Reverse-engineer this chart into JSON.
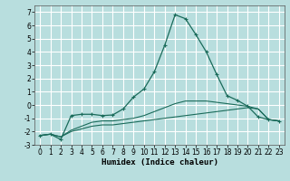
{
  "x": [
    0,
    1,
    2,
    3,
    4,
    5,
    6,
    7,
    8,
    9,
    10,
    11,
    12,
    13,
    14,
    15,
    16,
    17,
    18,
    19,
    20,
    21,
    22,
    23
  ],
  "line1": [
    -2.3,
    -2.2,
    -2.4,
    -2.0,
    -1.8,
    -1.6,
    -1.5,
    -1.5,
    -1.4,
    -1.3,
    -1.2,
    -1.1,
    -1.0,
    -0.9,
    -0.8,
    -0.7,
    -0.6,
    -0.5,
    -0.4,
    -0.3,
    -0.2,
    -0.3,
    -1.1,
    -1.2
  ],
  "line2": [
    -2.3,
    -2.2,
    -2.4,
    -1.9,
    -1.6,
    -1.3,
    -1.2,
    -1.2,
    -1.1,
    -1.0,
    -0.8,
    -0.5,
    -0.2,
    0.1,
    0.3,
    0.3,
    0.3,
    0.2,
    0.1,
    0.0,
    -0.1,
    -0.3,
    -1.1,
    -1.2
  ],
  "line3": [
    -2.3,
    -2.2,
    -2.6,
    -0.8,
    -0.7,
    -0.7,
    -0.8,
    -0.75,
    -0.3,
    0.6,
    1.2,
    2.5,
    4.5,
    6.8,
    6.5,
    5.3,
    4.0,
    2.3,
    0.7,
    0.35,
    -0.1,
    -0.9,
    -1.1,
    -1.2
  ],
  "bg_color": "#b8dede",
  "grid_color": "#d8eeee",
  "line_color": "#1a6b5a",
  "xlabel": "Humidex (Indice chaleur)",
  "ylim": [
    -3.0,
    7.5
  ],
  "xlim": [
    -0.5,
    23.5
  ],
  "yticks": [
    -3,
    -2,
    -1,
    0,
    1,
    2,
    3,
    4,
    5,
    6,
    7
  ],
  "xticks": [
    0,
    1,
    2,
    3,
    4,
    5,
    6,
    7,
    8,
    9,
    10,
    11,
    12,
    13,
    14,
    15,
    16,
    17,
    18,
    19,
    20,
    21,
    22,
    23
  ]
}
